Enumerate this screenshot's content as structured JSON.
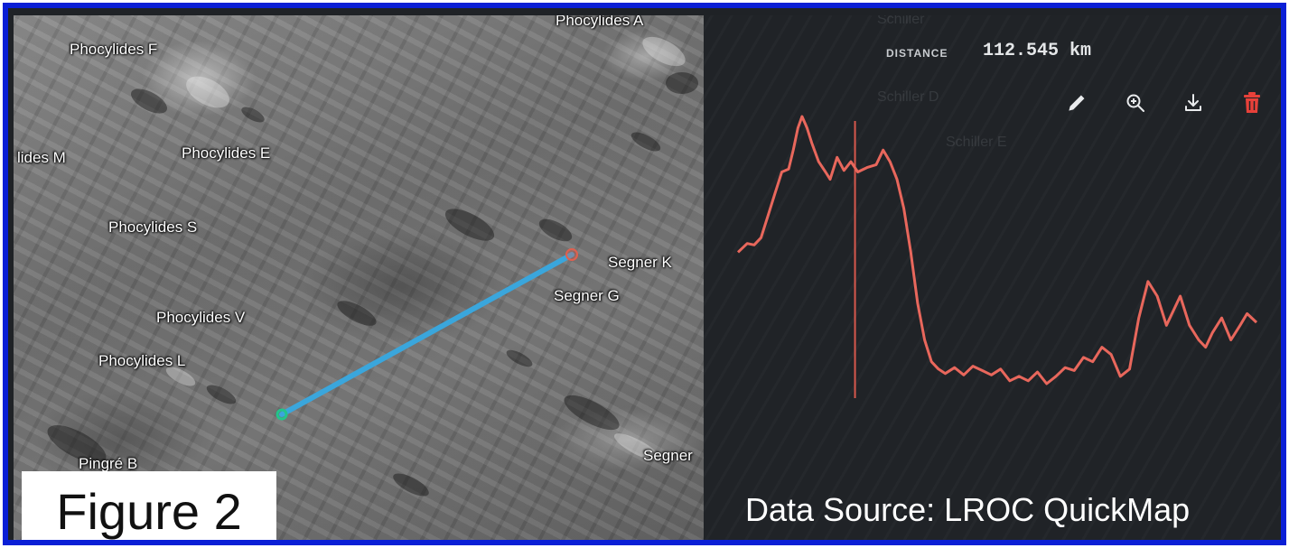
{
  "map": {
    "labels": [
      {
        "id": "phocylides-a",
        "text": "Phocylides A"
      },
      {
        "id": "phocylides-f",
        "text": "Phocylides F"
      },
      {
        "id": "phocylides-m",
        "text": "lides M"
      },
      {
        "id": "phocylides-e",
        "text": "Phocylides E"
      },
      {
        "id": "phocylides-s",
        "text": "Phocylides S"
      },
      {
        "id": "segner-k",
        "text": "Segner K"
      },
      {
        "id": "segner-g",
        "text": "Segner G"
      },
      {
        "id": "phocylides-v",
        "text": "Phocylides V"
      },
      {
        "id": "phocylides-l",
        "text": "Phocylides L"
      },
      {
        "id": "segner",
        "text": "Segner"
      },
      {
        "id": "pingre-b",
        "text": "Pingré B"
      }
    ],
    "measure_line_color": "#3aa6dc",
    "start_marker_color": "#23c48a",
    "end_marker_color": "#e0604f"
  },
  "figure_label": "Figure 2",
  "panel": {
    "distance_label": "DISTANCE",
    "distance_value": "112.545 km",
    "ghost_labels": [
      "Schiller",
      "Schiller D",
      "Schiller E"
    ],
    "toolbar": [
      {
        "name": "edit",
        "icon": "pencil-icon"
      },
      {
        "name": "zoom",
        "icon": "zoom-in-icon"
      },
      {
        "name": "download",
        "icon": "download-icon"
      },
      {
        "name": "delete",
        "icon": "trash-icon",
        "color": "#e8413a"
      }
    ]
  },
  "chart_data": {
    "type": "line",
    "title": "",
    "xlabel": "",
    "ylabel": "",
    "x_unit": "km",
    "xlim": [
      0,
      112.545
    ],
    "grid": false,
    "legend": "none",
    "cursor_x": 25.4,
    "series": [
      {
        "color": "#e8675c",
        "x": [
          0,
          2,
          3.5,
          5,
          6.5,
          8,
          9.5,
          11,
          12,
          13,
          13.9,
          15,
          16,
          17.5,
          19,
          20,
          21.5,
          23,
          24.5,
          26,
          28,
          30,
          31.5,
          33,
          34.5,
          36,
          37.5,
          39,
          40.5,
          42,
          43.5,
          45,
          47,
          49,
          51,
          53,
          55,
          57,
          59,
          61,
          63,
          65,
          67,
          69,
          71,
          73,
          75,
          77,
          79,
          81,
          83,
          85,
          87,
          89,
          91,
          93,
          94.5,
          96,
          98,
          100,
          101.5,
          103,
          105,
          107,
          109,
          110.5,
          112.545
        ],
        "y": [
          0,
          6,
          5,
          10,
          25,
          40,
          55,
          57,
          70,
          85,
          93,
          85,
          75,
          62,
          55,
          50,
          65,
          56,
          62,
          55,
          58,
          60,
          70,
          62,
          50,
          30,
          0,
          -35,
          -60,
          -75,
          -80,
          -83,
          -79,
          -84,
          -78,
          -81,
          -84,
          -80,
          -88,
          -85,
          -88,
          -82,
          -90,
          -85,
          -79,
          -81,
          -72,
          -75,
          -65,
          -70,
          -85,
          -80,
          -45,
          -20,
          -30,
          -50,
          -40,
          -30,
          -50,
          -60,
          -65,
          -55,
          -45,
          -60,
          -50,
          -42,
          -48
        ]
      }
    ],
    "y_unit": "m (relative)"
  },
  "source_label": "Data Source: LROC QuickMap"
}
